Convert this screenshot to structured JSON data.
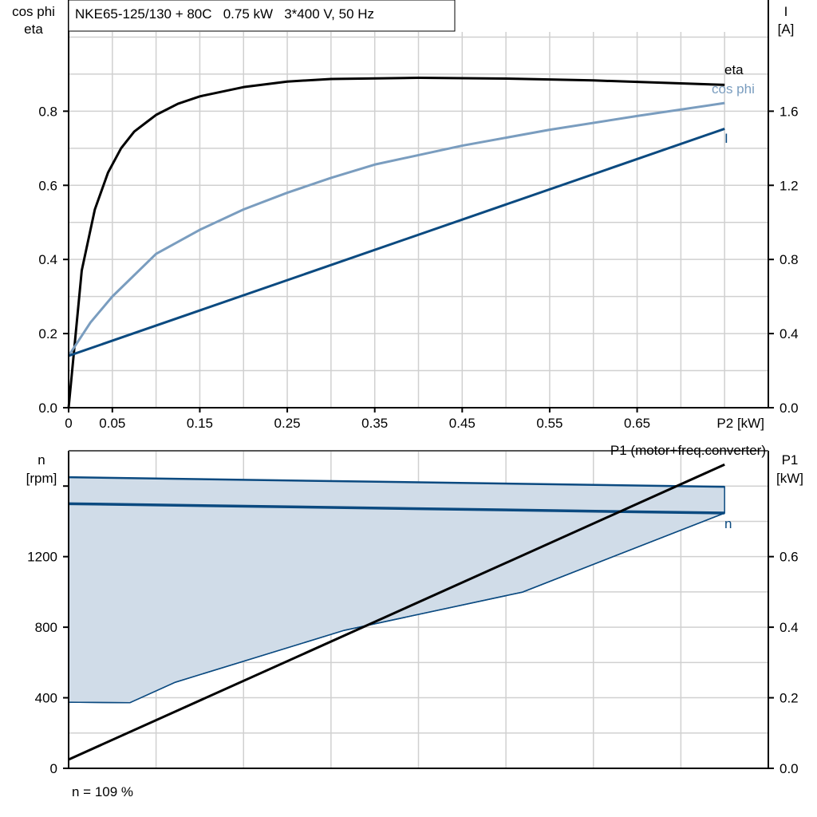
{
  "header": {
    "title": "NKE65-125/130 + 80C   0.75 kW   3*400 V, 50 Hz"
  },
  "footer": {
    "note": "n = 109 %"
  },
  "colors": {
    "eta": "#000000",
    "cos_phi": "#7a9dbf",
    "current": "#0b4a80",
    "speed": "#0b4a80",
    "speed_band": "#d0dce8",
    "p1": "#000000",
    "grid": "#d0d0d0"
  },
  "chart_data": [
    {
      "type": "line",
      "xlabel": "P2 [kW]",
      "ylabel_left": [
        "cos phi",
        "eta"
      ],
      "ylabel_right": [
        "I",
        "[A]"
      ],
      "xlim": [
        0,
        0.8
      ],
      "ylim_left": [
        0,
        1.1
      ],
      "ylim_right": [
        0,
        2.2
      ],
      "x_ticks": [
        "0",
        "0.05",
        "0.15",
        "0.25",
        "0.35",
        "0.45",
        "0.55",
        "0.65"
      ],
      "x_tick_values": [
        0,
        0.05,
        0.15,
        0.25,
        0.35,
        0.45,
        0.55,
        0.65
      ],
      "y_ticks_left": [
        "0.0",
        "0.2",
        "0.4",
        "0.6",
        "0.8"
      ],
      "y_tick_values_left": [
        0,
        0.2,
        0.4,
        0.6,
        0.8
      ],
      "y_ticks_right": [
        "0.0",
        "0.4",
        "0.8",
        "1.2",
        "1.6"
      ],
      "y_tick_values_right": [
        0,
        0.4,
        0.8,
        1.2,
        1.6
      ],
      "grid": true,
      "series": [
        {
          "name": "eta",
          "axis": "left",
          "x": [
            0,
            0.015,
            0.03,
            0.045,
            0.06,
            0.075,
            0.09,
            0.1,
            0.125,
            0.15,
            0.2,
            0.25,
            0.3,
            0.4,
            0.5,
            0.6,
            0.75
          ],
          "y": [
            0,
            0.37,
            0.535,
            0.634,
            0.7,
            0.745,
            0.772,
            0.79,
            0.82,
            0.84,
            0.865,
            0.88,
            0.887,
            0.89,
            0.888,
            0.883,
            0.871
          ]
        },
        {
          "name": "cos phi",
          "axis": "left",
          "x": [
            0,
            0.025,
            0.05,
            0.1,
            0.15,
            0.2,
            0.25,
            0.3,
            0.35,
            0.45,
            0.55,
            0.65,
            0.75
          ],
          "y": [
            0.14,
            0.23,
            0.3,
            0.415,
            0.48,
            0.535,
            0.58,
            0.62,
            0.656,
            0.707,
            0.75,
            0.787,
            0.822
          ]
        },
        {
          "name": "I",
          "axis": "right",
          "x": [
            0,
            0.75
          ],
          "y": [
            0.28,
            1.505
          ]
        }
      ]
    },
    {
      "type": "area",
      "xlim": [
        0,
        0.8
      ],
      "ylabel_left": [
        "n",
        "[rpm]"
      ],
      "ylabel_right": [
        "P1",
        "[kW]"
      ],
      "ylim_left": [
        0,
        1800
      ],
      "ylim_right": [
        0,
        0.9
      ],
      "y_ticks_left": [
        "0",
        "400",
        "800",
        "1200"
      ],
      "y_tick_values_left": [
        0,
        400,
        800,
        1200
      ],
      "y_ticks_right": [
        "0.0",
        "0.2",
        "0.4",
        "0.6"
      ],
      "y_tick_values_right": [
        0,
        0.2,
        0.4,
        0.6
      ],
      "grid": true,
      "series": [
        {
          "role": "speed-max",
          "axis": "left",
          "x": [
            0,
            0.75
          ],
          "y": [
            1650,
            1596
          ]
        },
        {
          "name": "n",
          "axis": "left",
          "x": [
            0,
            0.75
          ],
          "y": [
            1500,
            1447
          ]
        },
        {
          "role": "speed-min",
          "axis": "left",
          "x": [
            0,
            0.07,
            0.122,
            0.315,
            0.519,
            0.75
          ],
          "y": [
            375,
            372,
            488,
            782,
            999,
            1447
          ]
        },
        {
          "name": "P1 (motor+freq.converter)",
          "axis": "right",
          "x": [
            0,
            0.75
          ],
          "y": [
            0.025,
            0.861
          ]
        }
      ]
    }
  ]
}
